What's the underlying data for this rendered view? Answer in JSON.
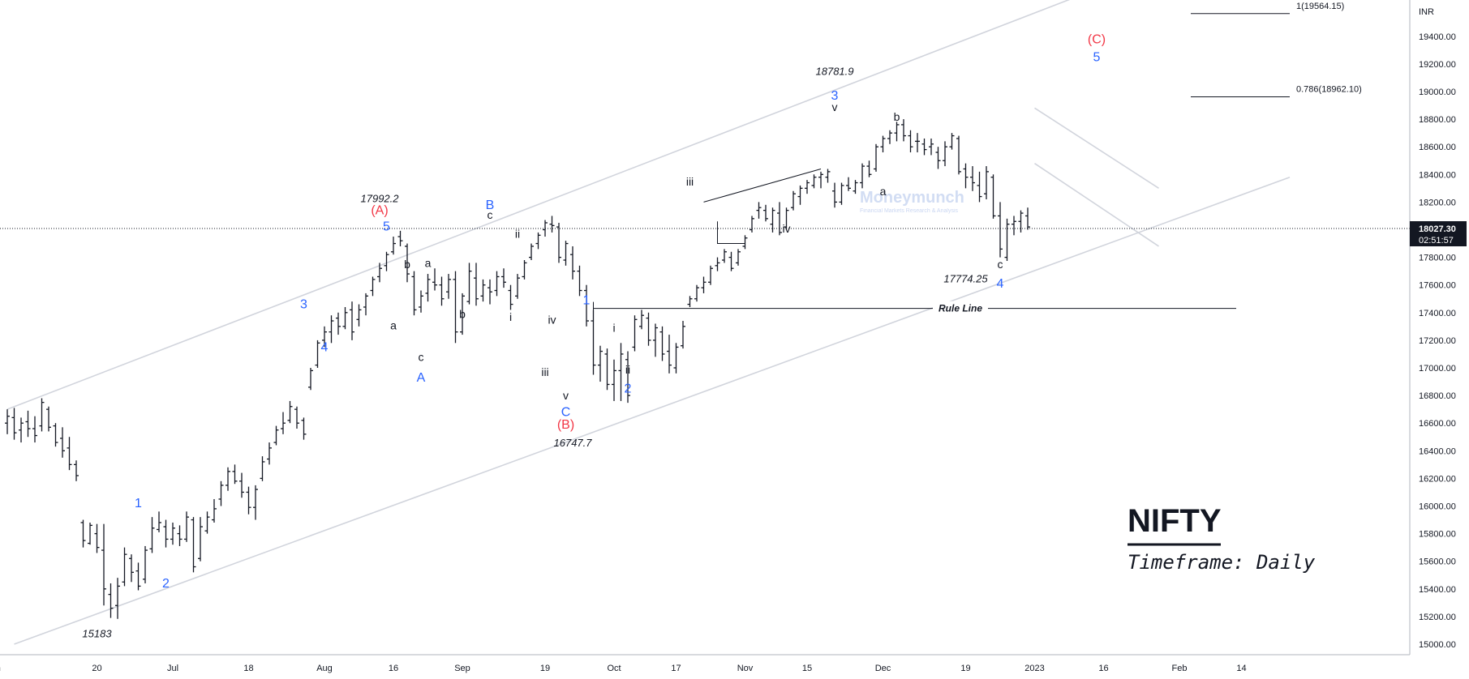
{
  "chart_data": {
    "type": "ohlc",
    "symbol": "NIFTY",
    "timeframe": "Timeframe: Daily",
    "currency": "INR",
    "last_price": "18027.30",
    "countdown": "02:51:57",
    "colors": {
      "bars": "#131722",
      "blue_wave": "#2962ff",
      "red_wave": "#f23645",
      "channel": "#d1d4dc"
    },
    "y_axis": {
      "min": 15000,
      "max": 19600,
      "step": 200,
      "ticks": [
        "15000.00",
        "15200.00",
        "15400.00",
        "15600.00",
        "15800.00",
        "16000.00",
        "16200.00",
        "16400.00",
        "16600.00",
        "16800.00",
        "17000.00",
        "17200.00",
        "17400.00",
        "17600.00",
        "17800.00",
        "18000.00",
        "18200.00",
        "18400.00",
        "18600.00",
        "18800.00",
        "19000.00",
        "19200.00",
        "19400.00"
      ]
    },
    "x_axis": {
      "ticks": [
        {
          "label": "Jun",
          "i": -2
        },
        {
          "label": "20",
          "i": 13
        },
        {
          "label": "Jul",
          "i": 24
        },
        {
          "label": "18",
          "i": 35
        },
        {
          "label": "Aug",
          "i": 46
        },
        {
          "label": "16",
          "i": 56
        },
        {
          "label": "Sep",
          "i": 66
        },
        {
          "label": "19",
          "i": 78
        },
        {
          "label": "Oct",
          "i": 88
        },
        {
          "label": "17",
          "i": 97
        },
        {
          "label": "Nov",
          "i": 107
        },
        {
          "label": "15",
          "i": 116
        },
        {
          "label": "Dec",
          "i": 127
        },
        {
          "label": "19",
          "i": 139
        },
        {
          "label": "2023",
          "i": 149
        },
        {
          "label": "16",
          "i": 159
        },
        {
          "label": "Feb",
          "i": 170
        },
        {
          "label": "14",
          "i": 179
        }
      ]
    },
    "bars": [
      [
        16600,
        16700,
        16520,
        16650
      ],
      [
        16640,
        16710,
        16480,
        16530
      ],
      [
        16550,
        16640,
        16460,
        16600
      ],
      [
        16610,
        16690,
        16500,
        16560
      ],
      [
        16560,
        16650,
        16460,
        16510
      ],
      [
        16580,
        16780,
        16540,
        16750
      ],
      [
        16700,
        16720,
        16540,
        16570
      ],
      [
        16580,
        16600,
        16430,
        16460
      ],
      [
        16490,
        16570,
        16350,
        16400
      ],
      [
        16420,
        16500,
        16260,
        16300
      ],
      [
        16300,
        16330,
        16180,
        16220
      ],
      [
        15880,
        15900,
        15700,
        15750
      ],
      [
        15730,
        15880,
        15720,
        15860
      ],
      [
        15800,
        15870,
        15660,
        15700
      ],
      [
        15680,
        15870,
        15280,
        15400
      ],
      [
        15360,
        15440,
        15190,
        15260
      ],
      [
        15280,
        15480,
        15183,
        15420
      ],
      [
        15450,
        15700,
        15420,
        15650
      ],
      [
        15620,
        15650,
        15450,
        15520
      ],
      [
        15530,
        15590,
        15390,
        15420
      ],
      [
        15470,
        15710,
        15440,
        15680
      ],
      [
        15690,
        15920,
        15660,
        15840
      ],
      [
        15830,
        15960,
        15810,
        15880
      ],
      [
        15850,
        15900,
        15700,
        15760
      ],
      [
        15760,
        15880,
        15720,
        15840
      ],
      [
        15800,
        15860,
        15710,
        15760
      ],
      [
        15760,
        15960,
        15740,
        15920
      ],
      [
        15900,
        15920,
        15520,
        15560
      ],
      [
        15620,
        15920,
        15600,
        15850
      ],
      [
        15820,
        15960,
        15800,
        15920
      ],
      [
        15900,
        16050,
        15880,
        15980
      ],
      [
        16050,
        16180,
        16000,
        16150
      ],
      [
        16150,
        16280,
        16110,
        16250
      ],
      [
        16250,
        16300,
        16160,
        16180
      ],
      [
        16180,
        16240,
        16060,
        16100
      ],
      [
        16100,
        16140,
        15940,
        15990
      ],
      [
        15990,
        16150,
        15900,
        16120
      ],
      [
        16200,
        16360,
        16180,
        16320
      ],
      [
        16340,
        16460,
        16300,
        16420
      ],
      [
        16460,
        16580,
        16440,
        16550
      ],
      [
        16560,
        16680,
        16520,
        16600
      ],
      [
        16620,
        16760,
        16600,
        16720
      ],
      [
        16700,
        16720,
        16560,
        16600
      ],
      [
        16620,
        16640,
        16480,
        16520
      ],
      [
        16860,
        17000,
        16840,
        16980
      ],
      [
        17020,
        17200,
        17000,
        17180
      ],
      [
        17200,
        17300,
        17150,
        17260
      ],
      [
        17260,
        17380,
        17180,
        17340
      ],
      [
        17360,
        17400,
        17240,
        17300
      ],
      [
        17300,
        17440,
        17280,
        17400
      ],
      [
        17420,
        17480,
        17200,
        17260
      ],
      [
        17350,
        17460,
        17300,
        17420
      ],
      [
        17440,
        17540,
        17380,
        17520
      ],
      [
        17560,
        17660,
        17520,
        17640
      ],
      [
        17660,
        17760,
        17620,
        17720
      ],
      [
        17740,
        17840,
        17700,
        17820
      ],
      [
        17840,
        17950,
        17820,
        17900
      ],
      [
        17950,
        17992,
        17880,
        17920
      ],
      [
        17880,
        17900,
        17620,
        17680
      ],
      [
        17660,
        17700,
        17380,
        17420
      ],
      [
        17440,
        17560,
        17400,
        17520
      ],
      [
        17540,
        17680,
        17480,
        17640
      ],
      [
        17620,
        17720,
        17560,
        17600
      ],
      [
        17600,
        17660,
        17450,
        17500
      ],
      [
        17550,
        17680,
        17500,
        17640
      ],
      [
        17640,
        17700,
        17180,
        17260
      ],
      [
        17260,
        17540,
        17240,
        17520
      ],
      [
        17480,
        17760,
        17460,
        17700
      ],
      [
        17650,
        17760,
        17450,
        17500
      ],
      [
        17520,
        17640,
        17480,
        17600
      ],
      [
        17580,
        17640,
        17460,
        17550
      ],
      [
        17560,
        17700,
        17520,
        17660
      ],
      [
        17660,
        17720,
        17580,
        17620
      ],
      [
        17560,
        17600,
        17420,
        17460
      ],
      [
        17520,
        17680,
        17500,
        17650
      ],
      [
        17660,
        17780,
        17640,
        17760
      ],
      [
        17800,
        17900,
        17780,
        17880
      ],
      [
        17900,
        17980,
        17860,
        17960
      ],
      [
        18000,
        18070,
        17950,
        18050
      ],
      [
        18040,
        18100,
        17980,
        18030
      ],
      [
        18020,
        18050,
        17760,
        17800
      ],
      [
        17780,
        17920,
        17740,
        17900
      ],
      [
        17820,
        17880,
        17640,
        17700
      ],
      [
        17700,
        17740,
        17520,
        17560
      ],
      [
        17560,
        17600,
        17300,
        17340
      ],
      [
        17340,
        17420,
        16950,
        17020
      ],
      [
        17020,
        17160,
        16900,
        17120
      ],
      [
        17100,
        17140,
        16840,
        16880
      ],
      [
        16880,
        17060,
        16760,
        16980
      ],
      [
        16980,
        17180,
        16760,
        17100
      ],
      [
        17060,
        17120,
        16747,
        16800
      ],
      [
        17150,
        17380,
        17120,
        17350
      ],
      [
        17300,
        17420,
        17280,
        17380
      ],
      [
        17360,
        17400,
        17160,
        17200
      ],
      [
        17200,
        17320,
        17080,
        17290
      ],
      [
        17260,
        17300,
        17050,
        17100
      ],
      [
        17120,
        17240,
        16960,
        17020
      ],
      [
        17000,
        17180,
        16960,
        17150
      ],
      [
        17160,
        17340,
        17140,
        17300
      ],
      [
        17460,
        17520,
        17440,
        17500
      ],
      [
        17500,
        17600,
        17480,
        17580
      ],
      [
        17580,
        17660,
        17540,
        17620
      ],
      [
        17620,
        17740,
        17600,
        17720
      ],
      [
        17740,
        17800,
        17700,
        17760
      ],
      [
        17780,
        17860,
        17760,
        17840
      ],
      [
        17800,
        17840,
        17700,
        17720
      ],
      [
        17760,
        17860,
        17740,
        17840
      ],
      [
        17880,
        17960,
        17860,
        17940
      ],
      [
        18000,
        18100,
        17980,
        18080
      ],
      [
        18140,
        18200,
        18080,
        18160
      ],
      [
        18140,
        18180,
        18060,
        18080
      ],
      [
        18040,
        18160,
        17980,
        18140
      ],
      [
        18120,
        18200,
        17960,
        17980
      ],
      [
        18020,
        18160,
        18000,
        18140
      ],
      [
        18160,
        18280,
        18140,
        18260
      ],
      [
        18240,
        18320,
        18180,
        18300
      ],
      [
        18300,
        18360,
        18260,
        18340
      ],
      [
        18320,
        18400,
        18300,
        18380
      ],
      [
        18380,
        18420,
        18300,
        18400
      ],
      [
        18380,
        18440,
        18340,
        18420
      ],
      [
        18280,
        18340,
        18160,
        18200
      ],
      [
        18200,
        18340,
        18180,
        18320
      ],
      [
        18320,
        18380,
        18280,
        18300
      ],
      [
        18280,
        18360,
        18260,
        18340
      ],
      [
        18340,
        18480,
        18300,
        18460
      ],
      [
        18460,
        18500,
        18380,
        18400
      ],
      [
        18440,
        18620,
        18420,
        18600
      ],
      [
        18600,
        18680,
        18560,
        18660
      ],
      [
        18660,
        18720,
        18620,
        18700
      ],
      [
        18700,
        18781,
        18640,
        18760
      ],
      [
        18760,
        18800,
        18640,
        18680
      ],
      [
        18680,
        18720,
        18560,
        18600
      ],
      [
        18640,
        18700,
        18560,
        18640
      ],
      [
        18620,
        18660,
        18540,
        18580
      ],
      [
        18600,
        18660,
        18540,
        18620
      ],
      [
        18560,
        18600,
        18440,
        18500
      ],
      [
        18500,
        18640,
        18460,
        18600
      ],
      [
        18600,
        18700,
        18580,
        18680
      ],
      [
        18660,
        18680,
        18400,
        18420
      ],
      [
        18440,
        18480,
        18300,
        18380
      ],
      [
        18380,
        18460,
        18280,
        18340
      ],
      [
        18320,
        18420,
        18200,
        18240
      ],
      [
        18260,
        18460,
        18220,
        18420
      ],
      [
        18380,
        18400,
        18080,
        18100
      ],
      [
        18100,
        18200,
        17800,
        17860
      ],
      [
        17800,
        18080,
        17774,
        18040
      ],
      [
        18040,
        18100,
        17960,
        18060
      ],
      [
        18060,
        18140,
        17980,
        18120
      ],
      [
        18100,
        18160,
        18000,
        18020
      ]
    ],
    "channel": {
      "upper_rail": [
        [
          0,
          16700
        ],
        [
          161,
          19800
        ]
      ],
      "lower_rail": [
        [
          1,
          15000
        ],
        [
          186,
          18380
        ]
      ],
      "ending_channel_top": [
        [
          149,
          18881
        ],
        [
          167,
          18300
        ]
      ],
      "ending_channel_bottom": [
        [
          149,
          18480
        ],
        [
          167,
          17880
        ]
      ]
    },
    "rule_line": {
      "label": "Rule Line",
      "y": 17430
    },
    "fib_levels": [
      {
        "label": "1(19564.15)",
        "y": 19564.15
      },
      {
        "label": "0.786(18962.10)",
        "y": 18962.1
      }
    ],
    "wave_labels": [
      {
        "text": "(A)",
        "color": "red",
        "i": 54,
        "y": 18110
      },
      {
        "text": "5",
        "color": "blue",
        "i": 55,
        "y": 17995
      },
      {
        "text": "(B)",
        "color": "red",
        "i": 81,
        "y": 16560
      },
      {
        "text": "C",
        "color": "blue",
        "i": 81,
        "y": 16650
      },
      {
        "text": "(C)",
        "color": "red",
        "i": 158,
        "y": 19350
      },
      {
        "text": "5",
        "color": "blue",
        "i": 158,
        "y": 19220
      },
      {
        "text": "1",
        "color": "blue",
        "i": 19,
        "y": 15990
      },
      {
        "text": "2",
        "color": "blue",
        "i": 23,
        "y": 15410
      },
      {
        "text": "3",
        "color": "blue",
        "i": 43,
        "y": 17430
      },
      {
        "text": "4",
        "color": "blue",
        "i": 46,
        "y": 17120
      },
      {
        "text": "A",
        "color": "blue",
        "i": 60,
        "y": 16900
      },
      {
        "text": "B",
        "color": "blue",
        "i": 70,
        "y": 18150
      },
      {
        "text": "1",
        "color": "blue",
        "i": 84,
        "y": 17460
      },
      {
        "text": "2",
        "color": "blue",
        "i": 90,
        "y": 16820
      },
      {
        "text": "3",
        "color": "blue",
        "i": 120,
        "y": 18940
      },
      {
        "text": "4",
        "color": "blue",
        "i": 144,
        "y": 17580
      },
      {
        "text": "c",
        "color": "black",
        "i": 70,
        "y": 18080
      },
      {
        "text": "b",
        "color": "black",
        "i": 58,
        "y": 17720
      },
      {
        "text": "a",
        "color": "black",
        "i": 56,
        "y": 17280
      },
      {
        "text": "a",
        "color": "black",
        "i": 61,
        "y": 17730
      },
      {
        "text": "c",
        "color": "black",
        "i": 60,
        "y": 17050
      },
      {
        "text": "b",
        "color": "black",
        "i": 66,
        "y": 17360
      },
      {
        "text": "ii",
        "color": "black",
        "i": 74,
        "y": 17940
      },
      {
        "text": "i",
        "color": "black",
        "i": 73,
        "y": 17340
      },
      {
        "text": "iv",
        "color": "black",
        "i": 79,
        "y": 17320
      },
      {
        "text": "iii",
        "color": "black",
        "i": 78,
        "y": 16940
      },
      {
        "text": "v",
        "color": "black",
        "i": 81,
        "y": 16770
      },
      {
        "text": "i",
        "color": "black",
        "i": 88,
        "y": 17260
      },
      {
        "text": "ii",
        "color": "black",
        "i": 90,
        "y": 16960
      },
      {
        "text": "iii",
        "color": "black",
        "i": 99,
        "y": 18320
      },
      {
        "text": "iv",
        "color": "black",
        "i": 113,
        "y": 17980
      },
      {
        "text": "v",
        "color": "black",
        "i": 120,
        "y": 18860
      },
      {
        "text": "b",
        "color": "black",
        "i": 129,
        "y": 18790
      },
      {
        "text": "a",
        "color": "black",
        "i": 127,
        "y": 18250
      },
      {
        "text": "c",
        "color": "black",
        "i": 144,
        "y": 17720
      }
    ],
    "price_annotations": [
      {
        "text": "17992.2",
        "i": 54,
        "y": 18200
      },
      {
        "text": "16747.7",
        "i": 82,
        "y": 16430
      },
      {
        "text": "18781.9",
        "i": 120,
        "y": 19120
      },
      {
        "text": "17774.25",
        "i": 139,
        "y": 17620
      },
      {
        "text": "15183",
        "i": 13,
        "y": 15050
      }
    ],
    "watermark": {
      "name": "Moneymunch",
      "tagline": "Financial Markets Research & Analysis"
    },
    "title": "",
    "xlabel": "",
    "ylabel": ""
  }
}
